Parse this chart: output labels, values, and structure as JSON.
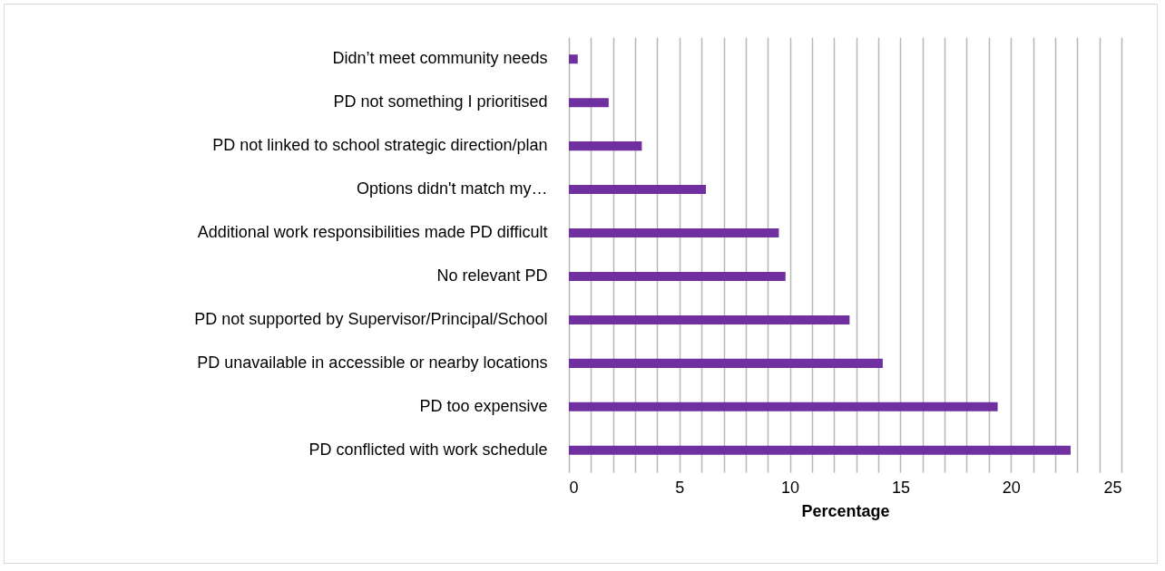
{
  "chart_data": {
    "type": "bar",
    "orientation": "horizontal",
    "xlabel": "Percentage",
    "categories": [
      "Didn’t meet community needs",
      "PD not something I prioritised",
      "PD not linked to school strategic direction/plan",
      "Options didn't match my…",
      "Additional work responsibilities made PD difficult",
      "No relevant PD",
      "PD not supported by Supervisor/Principal/School",
      "PD unavailable in accessible or nearby locations",
      "PD too expensive",
      "PD conflicted with work schedule"
    ],
    "values": [
      0.4,
      1.8,
      3.3,
      6.2,
      9.5,
      9.8,
      12.7,
      14.2,
      19.4,
      22.7
    ],
    "color": "#7030a0",
    "xlim": [
      0,
      25
    ],
    "xticks": [
      0,
      {
        "value": 1,
        "label": null
      },
      {
        "value": 2,
        "label": null
      },
      {
        "value": 3,
        "label": null
      },
      {
        "value": 4,
        "label": null
      },
      5,
      {
        "value": 6,
        "label": null
      },
      {
        "value": 7,
        "label": null
      },
      {
        "value": 8,
        "label": null
      },
      {
        "value": 9,
        "label": null
      },
      10,
      {
        "value": 11,
        "label": null
      },
      {
        "value": 12,
        "label": null
      },
      {
        "value": 13,
        "label": null
      },
      {
        "value": 14,
        "label": null
      },
      15,
      {
        "value": 16,
        "label": null
      },
      {
        "value": 17,
        "label": null
      },
      {
        "value": 18,
        "label": null
      },
      {
        "value": 19,
        "label": null
      },
      20,
      {
        "value": 21,
        "label": null
      },
      {
        "value": 22,
        "label": null
      },
      {
        "value": 23,
        "label": null
      },
      {
        "value": 24,
        "label": null
      },
      25
    ],
    "grid": "x"
  }
}
